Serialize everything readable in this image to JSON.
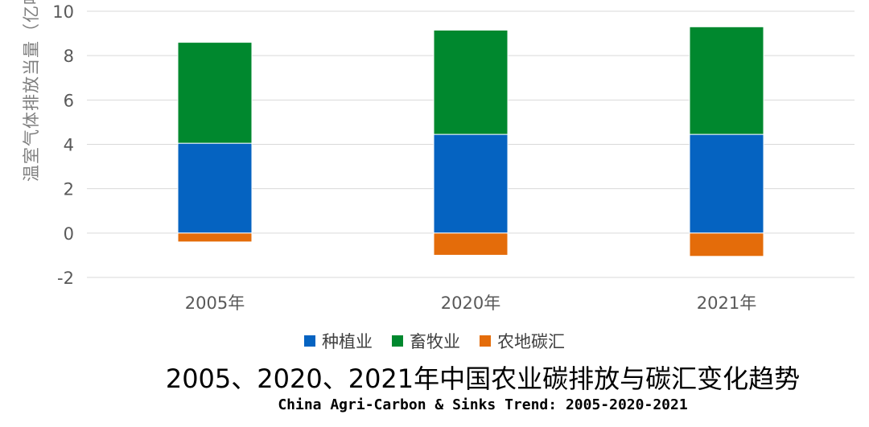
{
  "chart_data": {
    "type": "bar",
    "stacked": true,
    "categories": [
      "2005年",
      "2020年",
      "2021年"
    ],
    "series": [
      {
        "name": "种植业",
        "color": "#0563c1",
        "values": [
          4.05,
          4.45,
          4.45
        ]
      },
      {
        "name": "畜牧业",
        "color": "#00882e",
        "values": [
          4.55,
          4.7,
          4.85
        ]
      },
      {
        "name": "农地碳汇",
        "color": "#e46c0a",
        "values": [
          -0.4,
          -1.0,
          -1.05
        ]
      }
    ],
    "ylabel": "温室气体排放当量（亿吨）",
    "xlabel": "",
    "ylim": [
      -2,
      10
    ],
    "yticks": [
      -2,
      0,
      2,
      4,
      6,
      8,
      10
    ],
    "grid": true,
    "legend_position": "bottom",
    "title": "2005、2020、2021年中国农业碳排放与碳汇变化趋势",
    "subtitle": "China Agri-Carbon & Sinks Trend: 2005-2020-2021"
  }
}
